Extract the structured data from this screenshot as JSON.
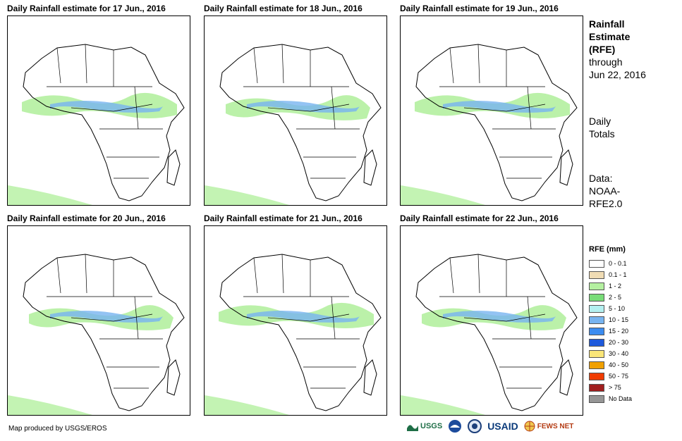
{
  "panels": [
    {
      "title": "Daily Rainfall estimate for 17 Jun., 2016"
    },
    {
      "title": "Daily Rainfall estimate for 18 Jun., 2016"
    },
    {
      "title": "Daily Rainfall estimate for 19 Jun., 2016"
    },
    {
      "title": "Daily Rainfall estimate for 20 Jun., 2016"
    },
    {
      "title": "Daily Rainfall estimate for 21 Jun., 2016"
    },
    {
      "title": "Daily Rainfall estimate for 22 Jun., 2016"
    }
  ],
  "side": {
    "title_1": "Rainfall",
    "title_2": "Estimate",
    "title_3": "(RFE)",
    "through": "through",
    "date": "Jun 22, 2016",
    "totals_1": "Daily",
    "totals_2": "Totals",
    "data_1": "Data:",
    "data_2": "NOAA-",
    "data_3": "RFE2.0"
  },
  "legend": {
    "title": "RFE (mm)",
    "items": [
      {
        "label": "0 - 0.1",
        "color": "#ffffff"
      },
      {
        "label": "0.1 - 1",
        "color": "#f0dcb4"
      },
      {
        "label": "1 - 2",
        "color": "#b4f0a0"
      },
      {
        "label": "2 - 5",
        "color": "#78dc78"
      },
      {
        "label": "5 - 10",
        "color": "#b4f0f0"
      },
      {
        "label": "10 - 15",
        "color": "#78b4f0"
      },
      {
        "label": "15 - 20",
        "color": "#3c8cf0"
      },
      {
        "label": "20 - 30",
        "color": "#1e5adc"
      },
      {
        "label": "30 - 40",
        "color": "#fae678"
      },
      {
        "label": "40 - 50",
        "color": "#f0a000"
      },
      {
        "label": "50 - 75",
        "color": "#f03c00"
      },
      {
        "label": "> 75",
        "color": "#a01e1e"
      },
      {
        "label": "No Data",
        "color": "#969696"
      }
    ]
  },
  "credit": "Map produced by USGS/EROS",
  "logos": {
    "usgs": "USGS",
    "noaa": "NOAA",
    "usaid": "USAID",
    "fews": "FEWS NET"
  }
}
